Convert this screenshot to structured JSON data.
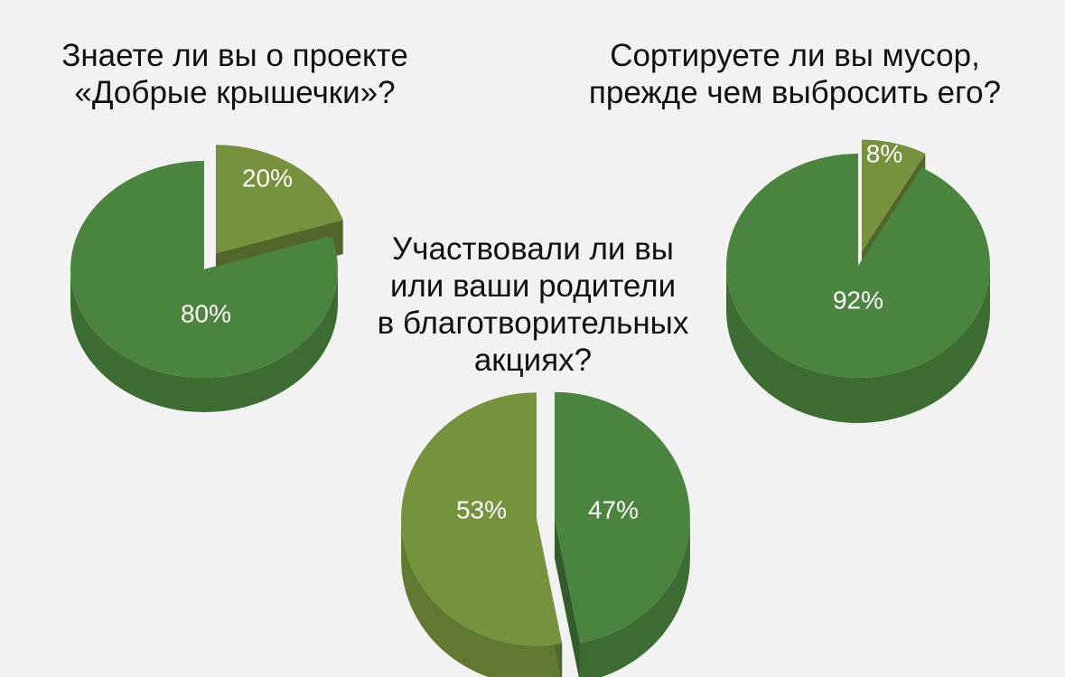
{
  "chart_data": [
    {
      "type": "pie",
      "title": "Знаете ли вы о проекте\n«Добрые крышечки»?",
      "slices": [
        {
          "label": "20%",
          "value": 20,
          "color": "#76923c"
        },
        {
          "label": "80%",
          "value": 80,
          "color": "#4a843e"
        }
      ]
    },
    {
      "type": "pie",
      "title": "Сортируете ли вы мусор,\nпрежде чем выбросить его?",
      "slices": [
        {
          "label": "8%",
          "value": 8,
          "color": "#76923c"
        },
        {
          "label": "92%",
          "value": 92,
          "color": "#4a843e"
        }
      ]
    },
    {
      "type": "pie",
      "title": "Участвовали ли вы\nили ваши родители\nв благотворительных\nакциях?",
      "slices": [
        {
          "label": "47%",
          "value": 47,
          "color": "#4a843e"
        },
        {
          "label": "53%",
          "value": 53,
          "color": "#76923c"
        }
      ]
    }
  ]
}
